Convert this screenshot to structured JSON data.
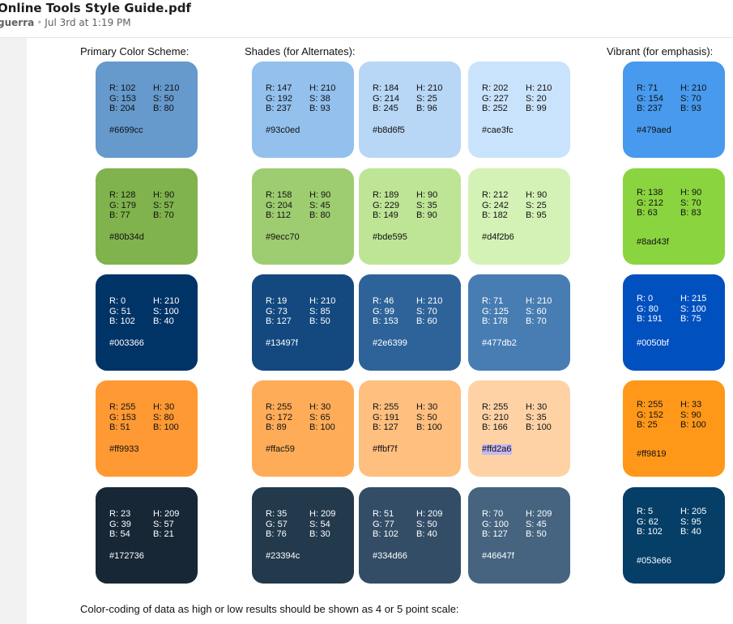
{
  "header": {
    "title": "Online Tools Style Guide.pdf",
    "user": "guerra",
    "separator": "•",
    "timestamp": "Jul 3rd at 1:19 PM"
  },
  "headings": {
    "primary": "Primary Color Scheme:",
    "shades": "Shades (for Alternates):",
    "vibrant": "Vibrant (for emphasis):"
  },
  "footer": "Color-coding of data as high or low results should be shown as 4 or 5 point scale:",
  "swatches": [
    {
      "bg": "#6699cc",
      "fg": "#111111",
      "r": "R: 102",
      "g": "G: 153",
      "b": "B: 204",
      "h": "H: 210",
      "s": "S: 50",
      "v": "B: 80",
      "hex": "#6699cc"
    },
    {
      "bg": "#93c0ed",
      "fg": "#111111",
      "r": "R: 147",
      "g": "G: 192",
      "b": "B: 237",
      "h": "H: 210",
      "s": "S: 38",
      "v": "B: 93",
      "hex": "#93c0ed"
    },
    {
      "bg": "#b8d6f5",
      "fg": "#111111",
      "r": "R: 184",
      "g": "G: 214",
      "b": "B: 245",
      "h": "H: 210",
      "s": "S: 25",
      "v": "B: 96",
      "hex": "#b8d6f5"
    },
    {
      "bg": "#cae3fc",
      "fg": "#111111",
      "r": "R: 202",
      "g": "G: 227",
      "b": "B: 252",
      "h": "H: 210",
      "s": "S: 20",
      "v": "B: 99",
      "hex": "#cae3fc"
    },
    {
      "bg": "#479aed",
      "fg": "#111111",
      "r": "R: 71",
      "g": "G: 154",
      "b": "B: 237",
      "h": "H: 210",
      "s": "S: 70",
      "v": "B: 93",
      "hex": "#479aed"
    },
    {
      "bg": "#80b34d",
      "fg": "#111111",
      "r": "R: 128",
      "g": "G: 179",
      "b": "B: 77",
      "h": "H: 90",
      "s": "S: 57",
      "v": "B: 70",
      "hex": "#80b34d"
    },
    {
      "bg": "#9ecc70",
      "fg": "#111111",
      "r": "R: 158",
      "g": "G: 204",
      "b": "B: 112",
      "h": "H: 90",
      "s": "S: 45",
      "v": "B: 80",
      "hex": "#9ecc70"
    },
    {
      "bg": "#bde595",
      "fg": "#111111",
      "r": "R: 189",
      "g": "G: 229",
      "b": "B: 149",
      "h": "H: 90",
      "s": "S: 35",
      "v": "B: 90",
      "hex": "#bde595"
    },
    {
      "bg": "#d4f2b6",
      "fg": "#111111",
      "r": "R: 212",
      "g": "G: 242",
      "b": "B: 182",
      "h": "H: 90",
      "s": "S: 25",
      "v": "B: 95",
      "hex": "#d4f2b6"
    },
    {
      "bg": "#8ad43f",
      "fg": "#111111",
      "r": "R: 138",
      "g": "G: 212",
      "b": "B: 63",
      "h": "H: 90",
      "s": "S: 70",
      "v": "B: 83",
      "hex": "#8ad43f"
    },
    {
      "bg": "#003366",
      "fg": "#ffffff",
      "r": "R: 0",
      "g": "G: 51",
      "b": "B: 102",
      "h": "H: 210",
      "s": "S: 100",
      "v": "B: 40",
      "hex": "#003366"
    },
    {
      "bg": "#13497f",
      "fg": "#ffffff",
      "r": "R: 19",
      "g": "G: 73",
      "b": "B: 127",
      "h": "H: 210",
      "s": "S: 85",
      "v": "B: 50",
      "hex": "#13497f"
    },
    {
      "bg": "#2e6399",
      "fg": "#ffffff",
      "r": "R: 46",
      "g": "G: 99",
      "b": "B: 153",
      "h": "H: 210",
      "s": "S: 70",
      "v": "B: 60",
      "hex": "#2e6399"
    },
    {
      "bg": "#477db2",
      "fg": "#ffffff",
      "r": "R: 71",
      "g": "G: 125",
      "b": "B: 178",
      "h": "H: 210",
      "s": "S: 60",
      "v": "B: 70",
      "hex": "#477db2"
    },
    {
      "bg": "#0050bf",
      "fg": "#ffffff",
      "r": "R: 0",
      "g": "G: 80",
      "b": "B: 191",
      "h": "H: 215",
      "s": "S: 100",
      "v": "B: 75",
      "hex": "#0050bf"
    },
    {
      "bg": "#ff9933",
      "fg": "#111111",
      "r": "R: 255",
      "g": "G: 153",
      "b": "B: 51",
      "h": "H: 30",
      "s": "S: 80",
      "v": "B: 100",
      "hex": "#ff9933"
    },
    {
      "bg": "#ffac59",
      "fg": "#111111",
      "r": "R: 255",
      "g": "G: 172",
      "b": "B: 89",
      "h": "H: 30",
      "s": "S: 65",
      "v": "B: 100",
      "hex": "#ffac59"
    },
    {
      "bg": "#ffbf7f",
      "fg": "#111111",
      "r": "R: 255",
      "g": "G: 191",
      "b": "B: 127",
      "h": "H: 30",
      "s": "S: 50",
      "v": "B: 100",
      "hex": "#ffbf7f"
    },
    {
      "bg": "#ffd2a6",
      "fg": "#111111",
      "r": "R: 255",
      "g": "G: 210",
      "b": "B: 166",
      "h": "H: 30",
      "s": "S: 35",
      "v": "B: 100",
      "hex": "#ffd2a6",
      "highlight": true
    },
    {
      "bg": "#ff9819",
      "fg": "#111111",
      "r": "R: 255",
      "g": "G: 152",
      "b": "B: 25",
      "h": "H: 33",
      "s": "S: 90",
      "v": "B: 100",
      "hex": "#ff9819"
    },
    {
      "bg": "#172736",
      "fg": "#ffffff",
      "r": "R: 23",
      "g": "G: 39",
      "b": "B: 54",
      "h": "H: 209",
      "s": "S: 57",
      "v": "B: 21",
      "hex": "#172736"
    },
    {
      "bg": "#23394c",
      "fg": "#ffffff",
      "r": "R: 35",
      "g": "G: 57",
      "b": "B: 76",
      "h": "H: 209",
      "s": "S: 54",
      "v": "B: 30",
      "hex": "#23394c"
    },
    {
      "bg": "#334d66",
      "fg": "#ffffff",
      "r": "R: 51",
      "g": "G: 77",
      "b": "B: 102",
      "h": "H: 209",
      "s": "S: 50",
      "v": "B: 40",
      "hex": "#334d66"
    },
    {
      "bg": "#46647f",
      "fg": "#ffffff",
      "r": "R: 70",
      "g": "G: 100",
      "b": "B: 127",
      "h": "H: 209",
      "s": "S: 45",
      "v": "B: 50",
      "hex": "#46647f"
    },
    {
      "bg": "#053e66",
      "fg": "#ffffff",
      "r": "R: 5",
      "g": "G: 62",
      "b": "B: 102",
      "h": "H: 205",
      "s": "S: 95",
      "v": "B: 40",
      "hex": "#053e66"
    }
  ]
}
